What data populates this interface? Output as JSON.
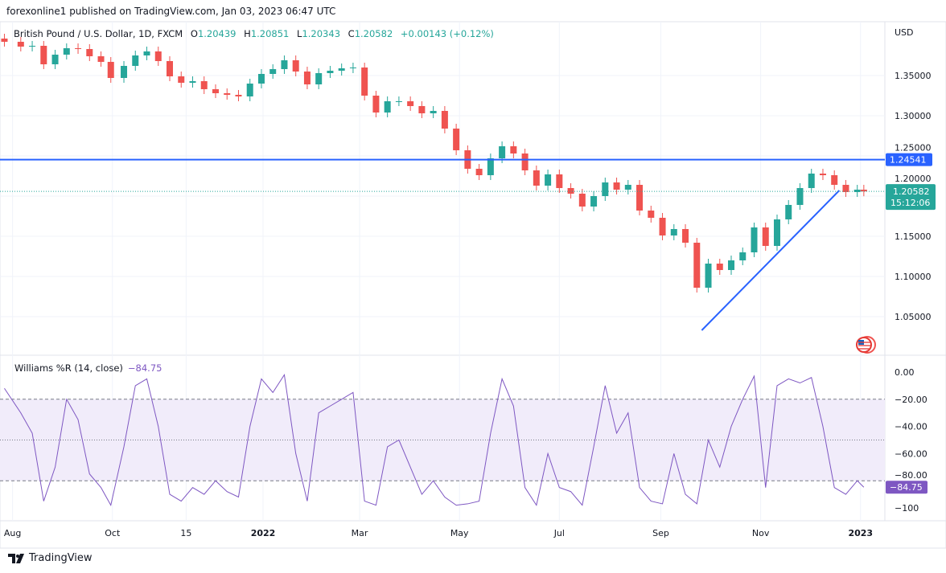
{
  "publisher": "forexonline1 published on TradingView.com, Jan 03, 2023 06:47 UTC",
  "legend": {
    "symbol": "British Pound / U.S. Dollar, 1D, FXCM",
    "open_label": "O",
    "open": "1.20439",
    "high_label": "H",
    "high": "1.20851",
    "low_label": "L",
    "low": "1.20343",
    "close_label": "C",
    "close": "1.20582",
    "change": "+0.00143 (+0.12%)"
  },
  "indicator_legend": {
    "name": "Williams %R (14, close)",
    "value": "−84.75"
  },
  "footer": {
    "brand": "TradingView"
  },
  "colors": {
    "up": "#26a69a",
    "down": "#ef5350",
    "line": "#2962ff",
    "wr": "#7e57c2",
    "wr_band": "#f1ecfa"
  },
  "chart_data": [
    {
      "type": "candlestick",
      "currency_label": "USD",
      "y_ticks": [
        "1.35000",
        "1.30000",
        "1.25000",
        "1.20000",
        "1.15000",
        "1.10000",
        "1.05000"
      ],
      "ylim": [
        1.02,
        1.41
      ],
      "x_ticks": [
        {
          "label": "Aug",
          "date": "2021-08-01",
          "bold": false
        },
        {
          "label": "Oct",
          "date": "2021-10-01",
          "bold": false
        },
        {
          "label": "15",
          "date": "2021-11-15",
          "bold": false
        },
        {
          "label": "2022",
          "date": "2022-01-01",
          "bold": true
        },
        {
          "label": "Mar",
          "date": "2022-03-01",
          "bold": false
        },
        {
          "label": "May",
          "date": "2022-05-01",
          "bold": false
        },
        {
          "label": "Jul",
          "date": "2022-07-01",
          "bold": false
        },
        {
          "label": "Sep",
          "date": "2022-09-01",
          "bold": false
        },
        {
          "label": "Nov",
          "date": "2022-11-01",
          "bold": false
        },
        {
          "label": "2023",
          "date": "2023-01-01",
          "bold": true
        }
      ],
      "dates": [
        "2021-07-27",
        "2021-08-06",
        "2021-08-13",
        "2021-08-20",
        "2021-08-27",
        "2021-09-03",
        "2021-09-10",
        "2021-09-17",
        "2021-09-24",
        "2021-09-30",
        "2021-10-08",
        "2021-10-15",
        "2021-10-22",
        "2021-10-29",
        "2021-11-05",
        "2021-11-12",
        "2021-11-19",
        "2021-11-26",
        "2021-12-03",
        "2021-12-10",
        "2021-12-17",
        "2021-12-24",
        "2021-12-31",
        "2022-01-07",
        "2022-01-14",
        "2022-01-21",
        "2022-01-28",
        "2022-02-04",
        "2022-02-11",
        "2022-02-18",
        "2022-02-25",
        "2022-03-04",
        "2022-03-11",
        "2022-03-18",
        "2022-03-25",
        "2022-04-01",
        "2022-04-08",
        "2022-04-15",
        "2022-04-22",
        "2022-04-29",
        "2022-05-06",
        "2022-05-13",
        "2022-05-20",
        "2022-05-27",
        "2022-06-03",
        "2022-06-10",
        "2022-06-17",
        "2022-06-24",
        "2022-07-01",
        "2022-07-08",
        "2022-07-15",
        "2022-07-22",
        "2022-07-29",
        "2022-08-05",
        "2022-08-12",
        "2022-08-19",
        "2022-08-26",
        "2022-09-02",
        "2022-09-09",
        "2022-09-16",
        "2022-09-23",
        "2022-09-30",
        "2022-10-07",
        "2022-10-14",
        "2022-10-21",
        "2022-10-28",
        "2022-11-04",
        "2022-11-11",
        "2022-11-18",
        "2022-11-25",
        "2022-12-02",
        "2022-12-09",
        "2022-12-16",
        "2022-12-23",
        "2022-12-30",
        "2023-01-03"
      ],
      "close": [
        1.392,
        1.386,
        1.387,
        1.364,
        1.376,
        1.384,
        1.383,
        1.374,
        1.367,
        1.347,
        1.362,
        1.375,
        1.38,
        1.368,
        1.349,
        1.341,
        1.343,
        1.333,
        1.328,
        1.326,
        1.324,
        1.34,
        1.352,
        1.358,
        1.369,
        1.355,
        1.339,
        1.353,
        1.356,
        1.359,
        1.36,
        1.325,
        1.304,
        1.318,
        1.318,
        1.312,
        1.303,
        1.306,
        1.284,
        1.257,
        1.234,
        1.226,
        1.247,
        1.262,
        1.253,
        1.232,
        1.213,
        1.227,
        1.21,
        1.203,
        1.187,
        1.2,
        1.217,
        1.208,
        1.214,
        1.182,
        1.173,
        1.151,
        1.159,
        1.142,
        1.086,
        1.116,
        1.108,
        1.12,
        1.13,
        1.161,
        1.138,
        1.171,
        1.189,
        1.21,
        1.228,
        1.226,
        1.214,
        1.205,
        1.208,
        1.20582
      ],
      "horizontal_line": {
        "value": 1.24541,
        "label": "1.24541"
      },
      "trendline": {
        "from": {
          "date": "2022-09-26",
          "value": 1.033
        },
        "to": {
          "date": "2022-12-19",
          "value": 1.207
        }
      },
      "last_price": {
        "value": 1.20582,
        "label": "1.20582",
        "countdown": "15:12:06"
      }
    },
    {
      "type": "line",
      "name": "Williams %R (14, close)",
      "y_ticks": [
        "0.00",
        "−20.00",
        "−40.00",
        "−60.00",
        "−80.00",
        "−100"
      ],
      "ylim": [
        -100,
        0
      ],
      "levels": [
        -20,
        -50,
        -80
      ],
      "values": [
        -12,
        -30,
        -45,
        -95,
        -70,
        -20,
        -35,
        -75,
        -85,
        -98,
        -55,
        -10,
        -5,
        -40,
        -90,
        -95,
        -85,
        -90,
        -80,
        -88,
        -92,
        -40,
        -5,
        -15,
        -2,
        -60,
        -95,
        -30,
        -25,
        -20,
        -15,
        -95,
        -98,
        -55,
        -50,
        -70,
        -90,
        -80,
        -92,
        -98,
        -97,
        -95,
        -45,
        -5,
        -25,
        -85,
        -98,
        -60,
        -85,
        -88,
        -98,
        -55,
        -10,
        -45,
        -30,
        -85,
        -95,
        -97,
        -60,
        -90,
        -97,
        -50,
        -70,
        -40,
        -20,
        -3,
        -85,
        -10,
        -5,
        -8,
        -4,
        -40,
        -85,
        -90,
        -80,
        -84.75
      ],
      "last_label": "−84.75"
    }
  ]
}
